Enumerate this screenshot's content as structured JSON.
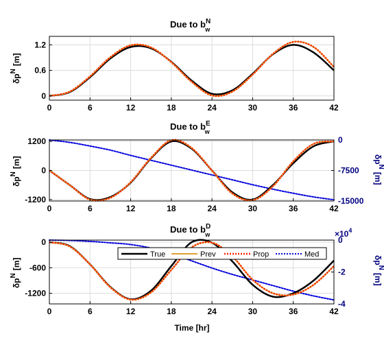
{
  "colors": {
    "true": "#000000",
    "prev": "#e0a030",
    "prop": "#ff2000",
    "med": "#0000dd",
    "right_axis": "#000080"
  },
  "legend": {
    "placement": "top-right",
    "entries": [
      "True",
      "Prev",
      "Prop",
      "Med"
    ]
  },
  "chart_data": [
    {
      "type": "line",
      "title_main": "Due to b",
      "title_sup": "N",
      "title_sub": "w",
      "ylabel_main": "δp",
      "ylabel_sup": "N",
      "ylabel_unit": "[m]",
      "xlim": [
        0,
        42
      ],
      "ylim": [
        -0.1,
        1.4
      ],
      "xticks": [
        "0",
        "6",
        "12",
        "18",
        "24",
        "30",
        "36",
        "42"
      ],
      "yticks": [
        "0",
        "0.6",
        "1.2"
      ],
      "grid": true,
      "x": [
        0,
        3,
        6,
        9,
        12,
        15,
        18,
        21,
        24,
        27,
        30,
        33,
        36,
        39,
        42
      ],
      "series": [
        {
          "name": "True",
          "values": [
            0,
            0.09,
            0.44,
            0.88,
            1.15,
            1.12,
            0.8,
            0.36,
            0.05,
            0.13,
            0.52,
            0.98,
            1.2,
            1.02,
            0.6
          ]
        },
        {
          "name": "Prev",
          "values": [
            0,
            0.1,
            0.46,
            0.91,
            1.19,
            1.14,
            0.79,
            0.33,
            0.01,
            0.1,
            0.5,
            0.99,
            1.27,
            1.15,
            0.68
          ]
        },
        {
          "name": "Prop",
          "values": [
            0,
            0.1,
            0.46,
            0.91,
            1.19,
            1.14,
            0.79,
            0.33,
            0.01,
            0.1,
            0.5,
            0.99,
            1.27,
            1.15,
            0.68
          ]
        }
      ]
    },
    {
      "type": "line",
      "title_main": "Due to b",
      "title_sup": "E",
      "title_sub": "w",
      "ylabel_main": "δp",
      "ylabel_sup": "N",
      "ylabel_unit": "[m]",
      "xlim": [
        0,
        42
      ],
      "ylim": [
        -1260,
        1260
      ],
      "xticks": [
        "0",
        "6",
        "12",
        "18",
        "24",
        "30",
        "36",
        "42"
      ],
      "yticks": [
        "-1200",
        "0",
        "1200"
      ],
      "grid": true,
      "x": [
        0,
        3,
        6,
        9,
        12,
        15,
        18,
        21,
        24,
        27,
        30,
        33,
        36,
        39,
        42
      ],
      "series": [
        {
          "name": "True",
          "values": [
            0,
            -600,
            -1180,
            -1100,
            -500,
            500,
            1200,
            900,
            0,
            -900,
            -1200,
            -600,
            300,
            1000,
            1200
          ]
        },
        {
          "name": "Prev",
          "values": [
            0,
            -600,
            -1200,
            -1130,
            -480,
            520,
            1250,
            930,
            0,
            -950,
            -1230,
            -650,
            380,
            1100,
            1200
          ]
        },
        {
          "name": "Prop",
          "values": [
            0,
            -600,
            -1200,
            -1130,
            -480,
            520,
            1250,
            930,
            0,
            -950,
            -1230,
            -650,
            380,
            1100,
            1200
          ]
        }
      ],
      "right_axis": {
        "ylim": [
          -15000,
          0
        ],
        "yticks": [
          "0",
          "-7500",
          "-15000"
        ],
        "label_main": "δp",
        "label_sup": "N",
        "label_unit": "[m]",
        "series": [
          {
            "name": "Med",
            "x": [
              0,
              3,
              6,
              9,
              12,
              15,
              18,
              21,
              24,
              27,
              30,
              33,
              36,
              39,
              42
            ],
            "values": [
              0,
              -600,
              -1500,
              -2500,
              -3800,
              -5000,
              -6200,
              -7400,
              -8600,
              -9800,
              -11000,
              -12100,
              -13100,
              -14000,
              -14700
            ]
          }
        ]
      }
    },
    {
      "type": "line",
      "title_main": "Due to b",
      "title_sup": "D",
      "title_sub": "w",
      "ylabel_main": "δp",
      "ylabel_sup": "N",
      "ylabel_unit": "[m]",
      "xlim": [
        0,
        42
      ],
      "ylim": [
        -1450,
        50
      ],
      "xticks": [
        "0",
        "6",
        "12",
        "18",
        "24",
        "30",
        "36",
        "42"
      ],
      "yticks": [
        "0",
        "-600",
        "-1200"
      ],
      "xlabel": "Time [hr]",
      "grid": true,
      "x": [
        0,
        3,
        6,
        9,
        12,
        15,
        18,
        21,
        24,
        27,
        30,
        33,
        36,
        39,
        42
      ],
      "series": [
        {
          "name": "True",
          "values": [
            0,
            -90,
            -520,
            -1050,
            -1340,
            -1140,
            -560,
            0,
            -10,
            -450,
            -1000,
            -1280,
            -1200,
            -900,
            -430
          ]
        },
        {
          "name": "Prev",
          "values": [
            0,
            -100,
            -520,
            -1060,
            -1350,
            -1180,
            -650,
            -120,
            -10,
            -330,
            -880,
            -1200,
            -1230,
            -1000,
            -560
          ]
        },
        {
          "name": "Prop",
          "values": [
            0,
            -100,
            -520,
            -1060,
            -1350,
            -1180,
            -650,
            -120,
            -10,
            -330,
            -880,
            -1200,
            -1230,
            -1000,
            -560
          ]
        }
      ],
      "right_axis": {
        "ylim": [
          -4,
          0
        ],
        "yticks": [
          "0",
          "-2",
          "-4"
        ],
        "exponent_base": "×10",
        "exponent_power": "4",
        "label_main": "δp",
        "label_sup": "N",
        "label_unit": "[m]",
        "series": [
          {
            "name": "Med",
            "x": [
              0,
              3,
              6,
              9,
              12,
              15,
              18,
              21,
              24,
              27,
              30,
              33,
              36,
              39,
              42
            ],
            "values": [
              0,
              -0.02,
              -0.08,
              -0.17,
              -0.28,
              -0.5,
              -0.85,
              -1.3,
              -1.75,
              -2.15,
              -2.5,
              -2.85,
              -3.2,
              -3.5,
              -3.75
            ]
          }
        ]
      }
    }
  ]
}
